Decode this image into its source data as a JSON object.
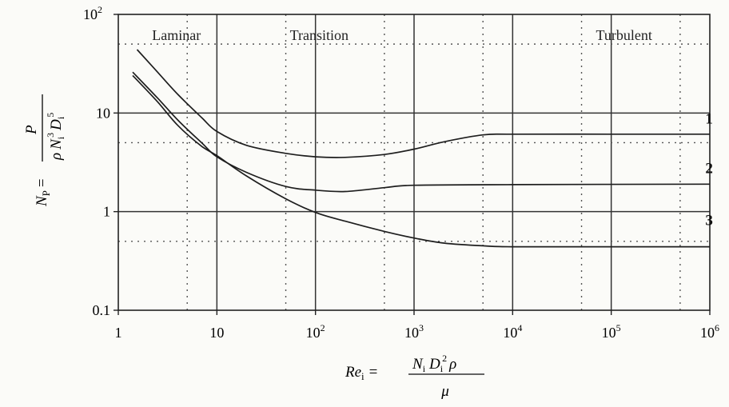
{
  "chart_data": {
    "type": "line",
    "x_scale": "log",
    "y_scale": "log",
    "xlim": [
      1,
      1000000
    ],
    "ylim": [
      0.1,
      100
    ],
    "grid": true,
    "x_ticks": [
      {
        "value": 1,
        "base": "1",
        "exp": ""
      },
      {
        "value": 10,
        "base": "10",
        "exp": ""
      },
      {
        "value": 100,
        "base": "10",
        "exp": "2"
      },
      {
        "value": 1000,
        "base": "10",
        "exp": "3"
      },
      {
        "value": 10000,
        "base": "10",
        "exp": "4"
      },
      {
        "value": 100000,
        "base": "10",
        "exp": "5"
      },
      {
        "value": 1000000,
        "base": "10",
        "exp": "6"
      }
    ],
    "y_ticks": [
      {
        "value": 0.1,
        "base": "0.1",
        "exp": ""
      },
      {
        "value": 1,
        "base": "1",
        "exp": ""
      },
      {
        "value": 10,
        "base": "10",
        "exp": ""
      },
      {
        "value": 100,
        "base": "10",
        "exp": "2"
      }
    ],
    "regions": [
      {
        "label": "Laminar",
        "x": 2.2,
        "y": 55
      },
      {
        "label": "Transition",
        "x": 55,
        "y": 55
      },
      {
        "label": "Turbulent",
        "x": 70000,
        "y": 55
      }
    ],
    "series": [
      {
        "label": "1",
        "label_x": 900000,
        "label_y": 7.8,
        "x": [
          1.55,
          2.5,
          4,
          7,
          10,
          20,
          50,
          100,
          200,
          500,
          1000,
          2000,
          5000,
          10000,
          100000,
          1000000
        ],
        "y": [
          44,
          26,
          15.5,
          9,
          6.5,
          4.7,
          3.9,
          3.6,
          3.55,
          3.8,
          4.3,
          5.1,
          6.0,
          6.1,
          6.1,
          6.1
        ]
      },
      {
        "label": "2",
        "label_x": 900000,
        "label_y": 2.45,
        "x": [
          1.4,
          2.5,
          4,
          7,
          10,
          20,
          50,
          100,
          200,
          500,
          1000,
          10000,
          1000000
        ],
        "y": [
          26,
          14.2,
          8.5,
          5,
          3.6,
          2.5,
          1.8,
          1.65,
          1.6,
          1.75,
          1.85,
          1.88,
          1.9
        ]
      },
      {
        "label": "3",
        "label_x": 900000,
        "label_y": 0.73,
        "x": [
          1.4,
          2.5,
          4,
          7,
          10,
          20,
          50,
          100,
          200,
          500,
          1000,
          2000,
          5000,
          10000,
          100000,
          1000000
        ],
        "y": [
          24,
          13,
          7.5,
          4.6,
          3.7,
          2.3,
          1.35,
          0.98,
          0.8,
          0.63,
          0.54,
          0.48,
          0.45,
          0.44,
          0.44,
          0.44
        ]
      }
    ],
    "ylabel": {
      "lhs_base": "N",
      "lhs_sub": "P",
      "eq": "=",
      "numerator": "P",
      "denominator": {
        "rho": "ρ",
        "N": "N",
        "N_sub": "i",
        "N_exp": "3",
        "D": "D",
        "D_sub": "i",
        "D_exp": "5"
      }
    },
    "xlabel": {
      "lhs_base": "Re",
      "lhs_sub": "i",
      "eq": "=",
      "numerator": {
        "N": "N",
        "N_sub": "i",
        "D": "D",
        "D_sub": "i",
        "D_exp": "2",
        "rho": "ρ"
      },
      "denominator": "μ"
    }
  }
}
